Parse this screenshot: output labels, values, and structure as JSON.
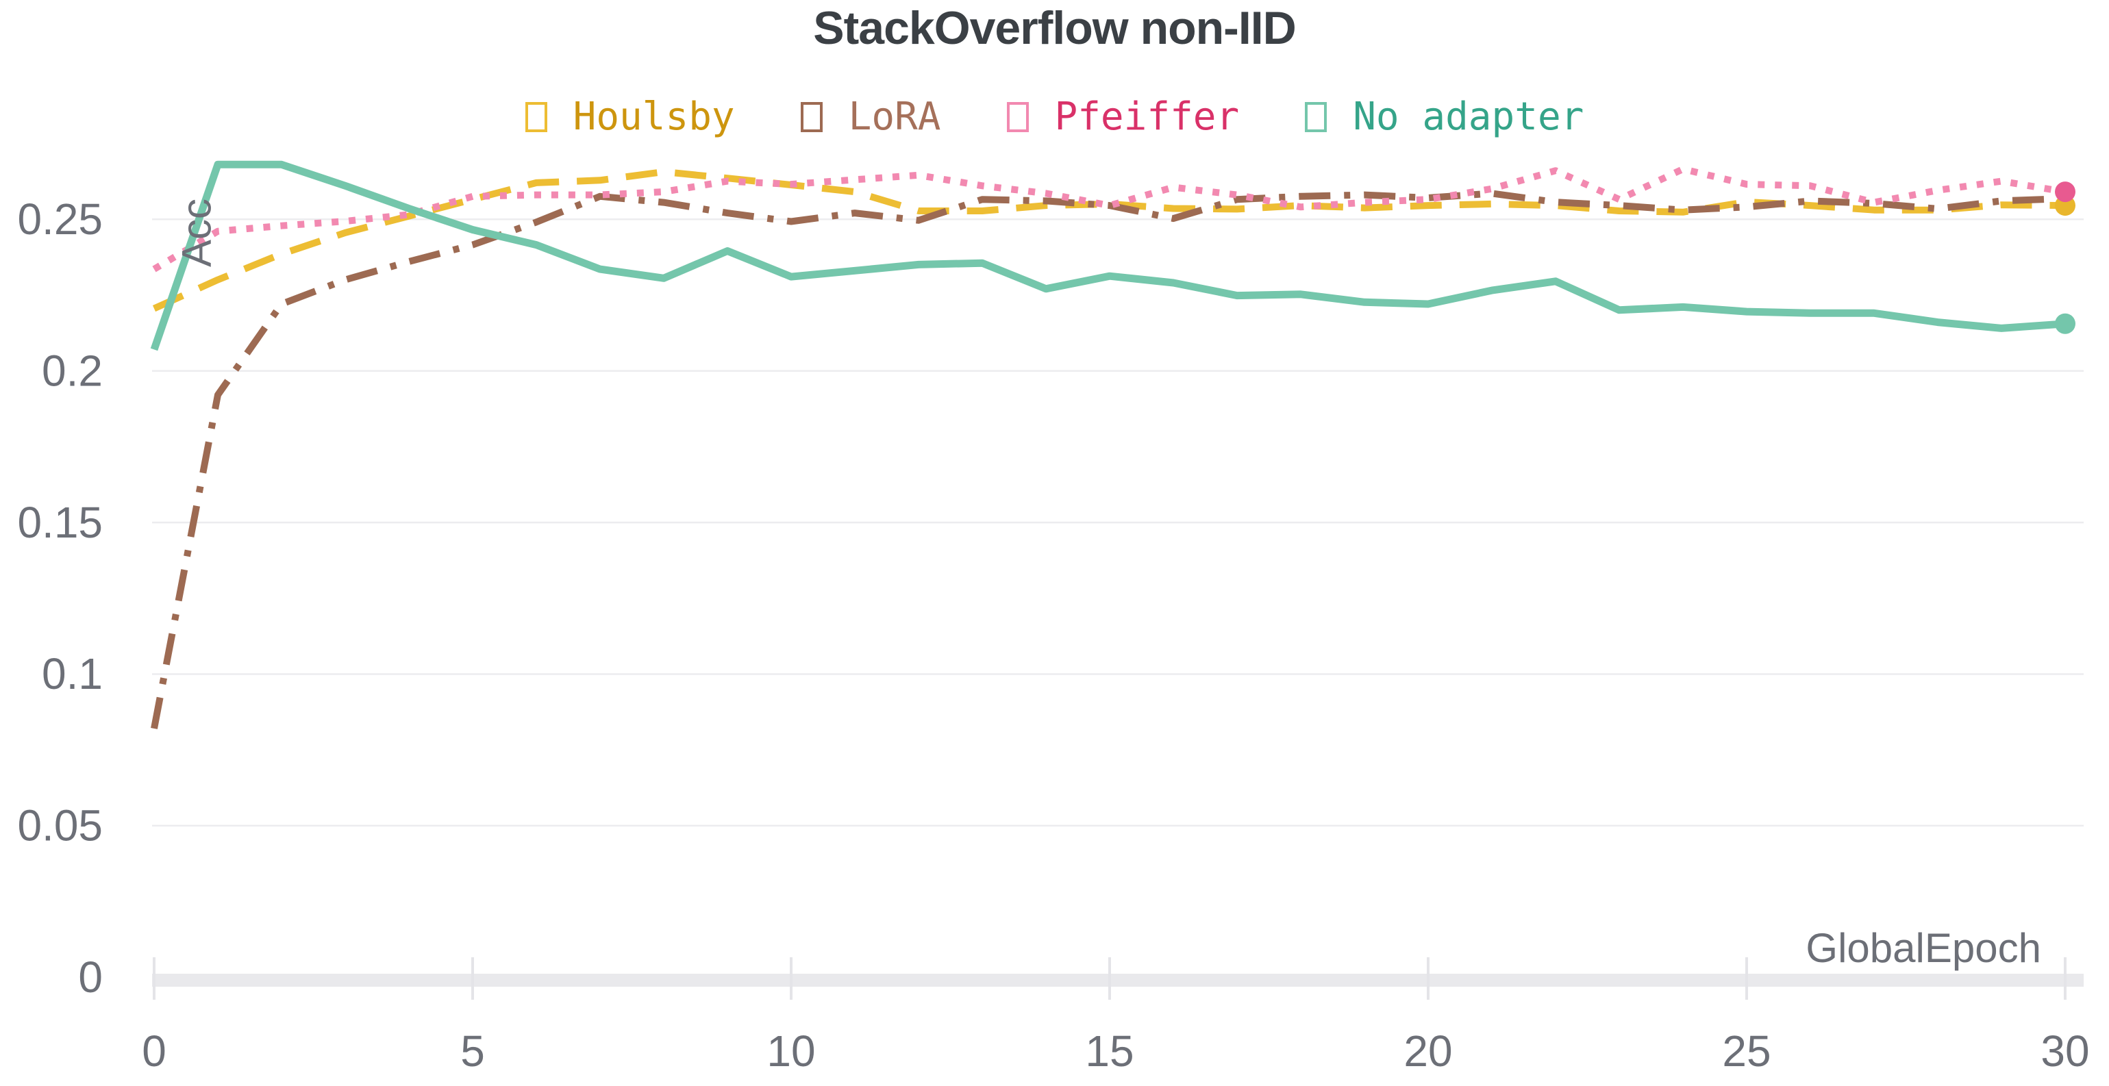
{
  "chart_data": {
    "type": "line",
    "title": "StackOverflow non-IID",
    "xlabel": "GlobalEpoch",
    "ylabel": "Acc",
    "xlim": [
      0,
      30
    ],
    "ylim": [
      0,
      0.28
    ],
    "grid": "horizontal-only",
    "legend_position": "top-center",
    "x": [
      0,
      1,
      2,
      3,
      4,
      5,
      6,
      7,
      8,
      9,
      10,
      11,
      12,
      13,
      14,
      15,
      16,
      17,
      18,
      19,
      20,
      21,
      22,
      23,
      24,
      25,
      26,
      27,
      28,
      29,
      30
    ],
    "xticks": {
      "values": [
        0,
        5,
        10,
        15,
        20,
        25,
        30
      ],
      "labels": [
        "0",
        "5",
        "10",
        "15",
        "20",
        "25",
        "30"
      ]
    },
    "yticks": {
      "values": [
        0,
        0.05,
        0.1,
        0.15,
        0.2,
        0.25
      ],
      "labels": [
        "0",
        "0.05",
        "0.1",
        "0.15",
        "0.2",
        "0.25"
      ]
    },
    "series": [
      {
        "name": "Houlsby",
        "line_style": "dashed",
        "color": "#edbd33",
        "label_color": "#cd950e",
        "end_marker": true,
        "end_marker_color": "#e9b62c",
        "values": [
          0.2205,
          0.23,
          0.2385,
          0.2455,
          0.251,
          0.2565,
          0.262,
          0.2628,
          0.2656,
          0.2635,
          0.2613,
          0.259,
          0.2527,
          0.2527,
          0.2545,
          0.255,
          0.2535,
          0.2533,
          0.2545,
          0.2537,
          0.2545,
          0.255,
          0.2545,
          0.2527,
          0.2523,
          0.2557,
          0.2545,
          0.253,
          0.253,
          0.2547,
          0.2545
        ]
      },
      {
        "name": "LoRA",
        "line_style": "dashdot",
        "color": "#9d6a52",
        "label_color": "#a5705a",
        "end_marker": false,
        "end_marker_color": "#9d6a52",
        "values": [
          0.082,
          0.192,
          0.222,
          0.23,
          0.236,
          0.2415,
          0.249,
          0.2575,
          0.2555,
          0.252,
          0.2492,
          0.252,
          0.2496,
          0.2565,
          0.256,
          0.2545,
          0.2502,
          0.2565,
          0.2575,
          0.258,
          0.257,
          0.2585,
          0.2556,
          0.2545,
          0.253,
          0.254,
          0.256,
          0.2552,
          0.2534,
          0.256,
          0.2568
        ]
      },
      {
        "name": "Pfeiffer",
        "line_style": "dotted",
        "color": "#f289b0",
        "label_color": "#d93168",
        "end_marker": true,
        "end_marker_color": "#e85a90",
        "values": [
          0.2335,
          0.246,
          0.2478,
          0.2493,
          0.2515,
          0.2575,
          0.258,
          0.258,
          0.259,
          0.2625,
          0.2615,
          0.263,
          0.2645,
          0.261,
          0.2585,
          0.2545,
          0.2605,
          0.258,
          0.254,
          0.2555,
          0.2565,
          0.26,
          0.266,
          0.2565,
          0.2665,
          0.2615,
          0.261,
          0.2555,
          0.2595,
          0.2625,
          0.259
        ]
      },
      {
        "name": "No adapter",
        "line_style": "solid",
        "color": "#74c6ab",
        "label_color": "#35a489",
        "end_marker": true,
        "end_marker_color": "#74c6ab",
        "values": [
          0.207,
          0.268,
          0.268,
          0.261,
          0.2535,
          0.2465,
          0.2415,
          0.2335,
          0.2305,
          0.2395,
          0.231,
          0.233,
          0.235,
          0.2355,
          0.227,
          0.2312,
          0.229,
          0.2248,
          0.2252,
          0.2226,
          0.222,
          0.2265,
          0.2295,
          0.22,
          0.221,
          0.2195,
          0.219,
          0.219,
          0.216,
          0.214,
          0.2155
        ]
      }
    ]
  },
  "legend": {
    "marker_glyph": "missing-glyph-box"
  },
  "colors": {
    "background": "#ffffff",
    "title": "#3b4045",
    "tick_label": "#6c6f77",
    "axis_label": "#6c6f77",
    "gridline": "#ececef",
    "axis_band": "#e9e9ec",
    "tick_mark": "#e4e4e8"
  }
}
